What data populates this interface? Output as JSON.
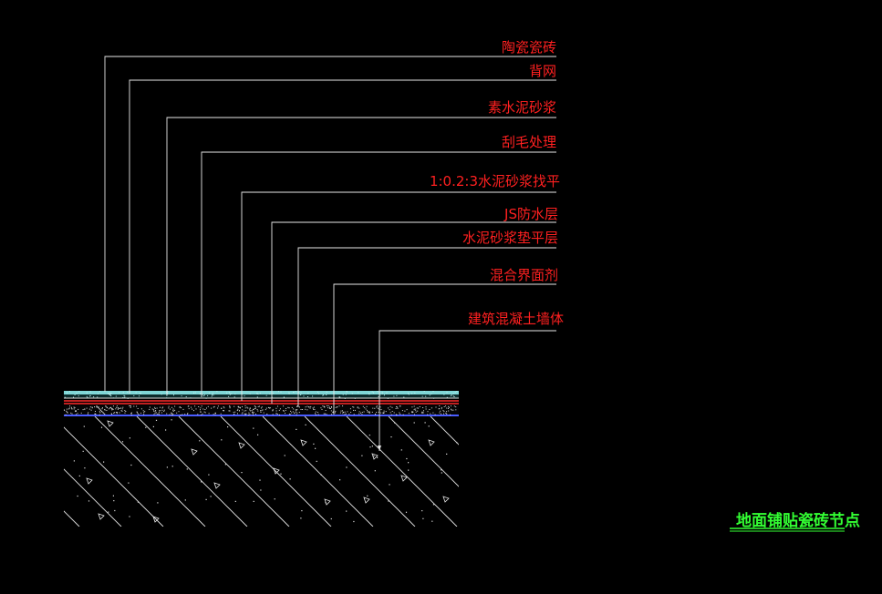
{
  "drawing": {
    "background": "#000000",
    "leader_color": "#ffffff",
    "label_color": "#ff2020",
    "title_color": "#33ff33",
    "layers": [
      {
        "label": "陶瓷瓷砖"
      },
      {
        "label": "背网"
      },
      {
        "label": "素水泥砂浆"
      },
      {
        "label": "刮毛处理"
      },
      {
        "label": "1:0.2:3水泥砂浆找平"
      },
      {
        "label": "JS防水层"
      },
      {
        "label": "水泥砂浆垫平层"
      },
      {
        "label": "混合界面剂"
      },
      {
        "label": "建筑混凝土墙体"
      }
    ],
    "title": "地面铺贴瓷砖节点",
    "stripe_colors": {
      "tile": "#7fd6d6",
      "red": "#ff2a2a",
      "blue": "#4a5cff",
      "concrete": "#ffffff"
    }
  }
}
